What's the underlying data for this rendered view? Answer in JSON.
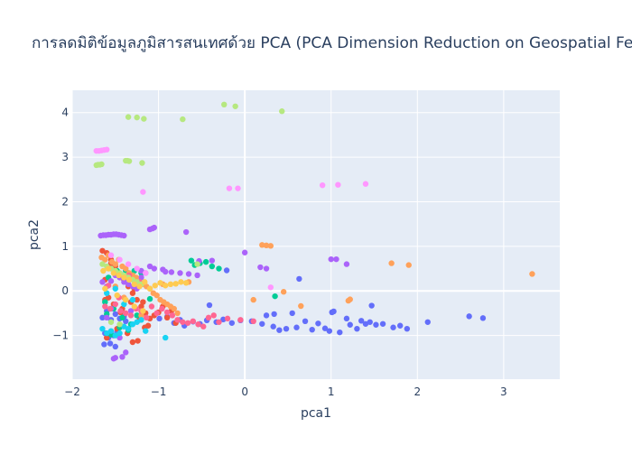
{
  "chart_data": {
    "type": "scatter",
    "title": "การลดมิติข้อมูลภูมิสารสนเทศด้วย PCA (PCA Dimension Reduction on Geospatial Fea",
    "xlabel": "pca1",
    "ylabel": "pca2",
    "xlim": [
      -2.0,
      3.65
    ],
    "ylim": [
      -1.98,
      4.5
    ],
    "xticks": [
      -2,
      -1,
      0,
      1,
      2,
      3
    ],
    "xtick_labels": [
      "−2",
      "−1",
      "0",
      "1",
      "2",
      "3"
    ],
    "yticks": [
      -1,
      0,
      1,
      2,
      3,
      4
    ],
    "ytick_labels": [
      "−1",
      "0",
      "1",
      "2",
      "3",
      "4"
    ],
    "grid": true,
    "background": "#e5ecf6",
    "series": [
      {
        "color": "#636efa",
        "x": [
          -0.99,
          -0.9,
          -0.82,
          -0.75,
          -0.7,
          -0.6,
          -0.52,
          -0.44,
          -0.33,
          -0.25,
          -0.15,
          -0.05,
          0.08,
          0.2,
          0.25,
          0.33,
          0.4,
          0.48,
          0.55,
          0.6,
          0.7,
          0.78,
          0.85,
          0.93,
          0.98,
          1.03,
          1.1,
          1.18,
          1.22,
          1.3,
          1.35,
          1.4,
          1.45,
          1.52,
          1.6,
          1.72,
          1.8,
          1.88,
          2.12,
          2.6,
          2.76,
          0.63,
          1.01,
          1.47,
          0.34,
          -0.41,
          -0.21,
          -1.65,
          -1.6,
          -1.55,
          -1.5,
          -1.45,
          -1.4,
          -1.62,
          -1.58,
          -1.52,
          -1.48,
          -1.63,
          -1.56,
          -1.5,
          -1.44,
          -1.38
        ],
        "y": [
          -0.62,
          -0.58,
          -0.72,
          -0.65,
          -0.78,
          -0.69,
          -0.74,
          -0.66,
          -0.7,
          -0.64,
          -0.72,
          -0.66,
          -0.68,
          -0.74,
          -0.55,
          -0.8,
          -0.88,
          -0.85,
          -0.5,
          -0.82,
          -0.68,
          -0.87,
          -0.73,
          -0.84,
          -0.9,
          -0.46,
          -0.93,
          -0.62,
          -0.76,
          -0.85,
          -0.67,
          -0.74,
          -0.7,
          -0.76,
          -0.74,
          -0.82,
          -0.78,
          -0.85,
          -0.7,
          -0.57,
          -0.61,
          0.27,
          -0.48,
          -0.33,
          -0.52,
          -0.32,
          0.46,
          -0.6,
          -0.45,
          -0.65,
          -0.52,
          -0.62,
          -0.58,
          -0.95,
          -1.05,
          -1.0,
          -0.92,
          -1.2,
          -1.18,
          -1.25,
          -0.78,
          -0.68
        ]
      },
      {
        "color": "#ef553b",
        "x": [
          -1.65,
          -1.6,
          -1.55,
          -1.5,
          -1.45,
          -1.4,
          -1.35,
          -1.3,
          -1.25,
          -1.2,
          -1.15,
          -1.1,
          -1.05,
          -1.0,
          -0.95,
          -0.9,
          -0.85,
          -0.8,
          -1.62,
          -1.52,
          -1.42,
          -1.32,
          -1.22,
          -1.12,
          -1.6,
          -1.48,
          -1.36,
          -1.24,
          -1.58,
          -1.44,
          -1.3,
          -1.16,
          -1.28,
          -1.18,
          -1.62,
          -1.55
        ],
        "y": [
          0.9,
          0.85,
          0.7,
          0.55,
          0.4,
          0.25,
          0.1,
          -0.05,
          -0.2,
          -0.35,
          -0.5,
          -0.62,
          -0.55,
          -0.48,
          -0.35,
          -0.6,
          -0.45,
          -0.72,
          -0.2,
          -0.3,
          -0.4,
          -0.25,
          -0.65,
          -0.78,
          -1.05,
          -0.85,
          -0.95,
          -1.12,
          -0.15,
          -0.48,
          -1.15,
          -0.82,
          0.05,
          -0.25,
          0.25,
          0.62
        ]
      },
      {
        "color": "#00cc96",
        "x": [
          -1.58,
          -1.48,
          -1.38,
          -1.28,
          -1.2,
          -1.1,
          -1.62,
          -1.52,
          -1.42,
          -1.32,
          -0.62,
          -0.52,
          -0.45,
          -0.38,
          -0.3,
          0.35,
          -1.55,
          -1.45,
          -1.35,
          -1.6,
          -0.58,
          -1.25
        ],
        "y": [
          0.3,
          0.45,
          0.45,
          0.45,
          0.4,
          -0.18,
          -0.25,
          -0.4,
          -0.6,
          -0.75,
          0.68,
          0.62,
          0.65,
          0.55,
          0.5,
          -0.12,
          -0.98,
          -0.82,
          -0.88,
          -0.52,
          0.58,
          -0.55
        ]
      },
      {
        "color": "#ab63fa",
        "x": [
          -1.67,
          -1.64,
          -1.61,
          -1.58,
          -1.55,
          -1.52,
          -1.49,
          -1.46,
          -1.43,
          -1.4,
          -1.1,
          -1.07,
          -1.05,
          -0.92,
          -0.68,
          -0.38,
          -0.53,
          0.0,
          0.18,
          0.25,
          1.0,
          1.06,
          1.18,
          -1.65,
          -1.6,
          -1.55,
          -1.5,
          -1.45,
          -1.4,
          -1.35,
          -1.3,
          -1.25,
          -1.2,
          -1.15,
          -1.1,
          -1.05,
          -0.95,
          -0.85,
          -0.75,
          -0.65,
          -0.55,
          -1.52,
          -1.5,
          -1.6,
          -1.55,
          -1.42,
          -1.38,
          -1.32,
          -1.2,
          -1.45
        ],
        "y": [
          1.24,
          1.25,
          1.25,
          1.26,
          1.26,
          1.27,
          1.27,
          1.26,
          1.25,
          1.24,
          1.38,
          1.4,
          1.42,
          0.43,
          1.32,
          0.68,
          0.67,
          0.86,
          0.53,
          0.5,
          0.71,
          0.71,
          0.6,
          0.2,
          0.1,
          0.22,
          0.35,
          0.3,
          0.2,
          0.15,
          0.1,
          0.05,
          0.45,
          0.4,
          0.55,
          0.5,
          0.48,
          0.42,
          0.4,
          0.38,
          0.35,
          -1.52,
          -1.5,
          -0.6,
          -0.4,
          -1.48,
          -1.38,
          -0.45,
          0.3,
          -1.05
        ]
      },
      {
        "color": "#ffa15a",
        "x": [
          -1.66,
          -1.62,
          -1.58,
          -1.54,
          -1.5,
          -1.46,
          -1.42,
          -1.38,
          -1.34,
          -1.3,
          -1.26,
          -1.22,
          -1.18,
          -1.14,
          -1.1,
          -1.06,
          -1.02,
          -0.98,
          -0.94,
          -0.9,
          -0.86,
          -0.82,
          -0.78,
          -0.65,
          0.2,
          0.25,
          0.3,
          0.45,
          0.65,
          1.2,
          1.22,
          1.7,
          1.9,
          3.33,
          0.1,
          -1.5,
          -1.4,
          -0.95,
          -1.2
        ],
        "y": [
          0.75,
          0.7,
          0.8,
          0.65,
          0.6,
          0.7,
          0.55,
          0.5,
          0.4,
          0.35,
          0.3,
          0.2,
          0.15,
          0.1,
          0.05,
          -0.05,
          -0.1,
          -0.2,
          -0.25,
          -0.3,
          -0.35,
          -0.4,
          -0.5,
          0.2,
          1.03,
          1.02,
          1.01,
          -0.02,
          -0.34,
          -0.22,
          -0.19,
          0.62,
          0.58,
          0.38,
          -0.2,
          0.1,
          -0.15,
          0.15,
          -0.55
        ]
      },
      {
        "color": "#19d3f3",
        "x": [
          -1.65,
          -1.6,
          -1.55,
          -1.5,
          -1.45,
          -1.4,
          -1.35,
          -1.3,
          -1.25,
          -1.2,
          -0.92,
          -1.15,
          -1.6,
          -1.5,
          -1.4,
          -1.3
        ],
        "y": [
          -0.85,
          -0.95,
          -0.9,
          -1.0,
          -0.95,
          -0.8,
          -0.85,
          -0.75,
          -0.7,
          -0.65,
          -1.05,
          -0.9,
          -0.05,
          0.05,
          -0.3,
          -0.2
        ]
      },
      {
        "color": "#ff6692",
        "x": [
          -1.62,
          -1.56,
          -1.5,
          -1.44,
          -1.38,
          -1.32,
          -1.26,
          -1.2,
          -1.14,
          -1.08,
          -1.02,
          -0.96,
          -0.9,
          -0.84,
          -0.78,
          -0.72,
          -0.66,
          -0.6,
          -0.54,
          -0.48,
          -0.42,
          -0.36,
          -0.3,
          -0.2,
          -0.05,
          0.1,
          -1.58,
          -1.46,
          -1.34,
          -1.22
        ],
        "y": [
          -0.35,
          -0.4,
          -0.3,
          -0.45,
          -0.5,
          -0.55,
          -0.4,
          -0.45,
          -0.6,
          -0.35,
          -0.5,
          -0.4,
          -0.48,
          -0.55,
          -0.65,
          -0.7,
          -0.72,
          -0.68,
          -0.75,
          -0.8,
          -0.6,
          -0.55,
          -0.7,
          -0.62,
          -0.65,
          -0.68,
          0.12,
          -0.15,
          0.35,
          0.2
        ]
      },
      {
        "color": "#b6e880",
        "x": [
          -1.72,
          -1.7,
          -1.68,
          -1.66,
          -1.38,
          -1.36,
          -1.34,
          -1.19,
          -1.35,
          -1.25,
          -1.17,
          -0.72,
          -0.24,
          -0.11,
          0.43,
          -1.65,
          -1.6,
          -1.55,
          -1.5,
          -1.45,
          -1.4,
          -1.35,
          -1.3,
          -1.25,
          -1.2,
          -1.55,
          -1.45,
          -0.55
        ],
        "y": [
          2.82,
          2.83,
          2.83,
          2.84,
          2.92,
          2.92,
          2.91,
          2.87,
          3.9,
          3.89,
          3.86,
          3.85,
          4.18,
          4.14,
          4.03,
          0.6,
          0.55,
          0.5,
          0.45,
          0.4,
          0.35,
          0.3,
          0.25,
          0.2,
          0.15,
          -0.7,
          -0.75,
          0.6
        ]
      },
      {
        "color": "#ff97ff",
        "x": [
          -1.72,
          -1.69,
          -1.66,
          -1.63,
          -1.6,
          -1.18,
          -0.18,
          -0.08,
          0.9,
          1.08,
          1.4,
          0.3,
          -1.55,
          -1.45,
          -1.35,
          -1.25,
          -1.15
        ],
        "y": [
          3.14,
          3.14,
          3.15,
          3.16,
          3.17,
          2.22,
          2.3,
          2.3,
          2.37,
          2.38,
          2.4,
          0.08,
          0.8,
          0.7,
          0.6,
          0.5,
          0.4
        ]
      },
      {
        "color": "#fecb52",
        "x": [
          -1.64,
          -1.58,
          -1.52,
          -1.46,
          -1.4,
          -1.34,
          -1.28,
          -1.22,
          -1.16,
          -1.1,
          -1.04,
          -0.98,
          -0.92,
          -0.86,
          -0.8,
          -0.74,
          -0.68,
          -1.62,
          -1.48,
          -1.38,
          -1.28,
          -1.18
        ],
        "y": [
          0.45,
          0.5,
          0.4,
          0.35,
          0.3,
          0.25,
          0.15,
          0.1,
          0.2,
          0.05,
          0.12,
          0.18,
          0.12,
          0.15,
          0.16,
          0.2,
          0.18,
          0.05,
          -0.1,
          -0.2,
          -0.35,
          -0.45
        ]
      }
    ]
  }
}
